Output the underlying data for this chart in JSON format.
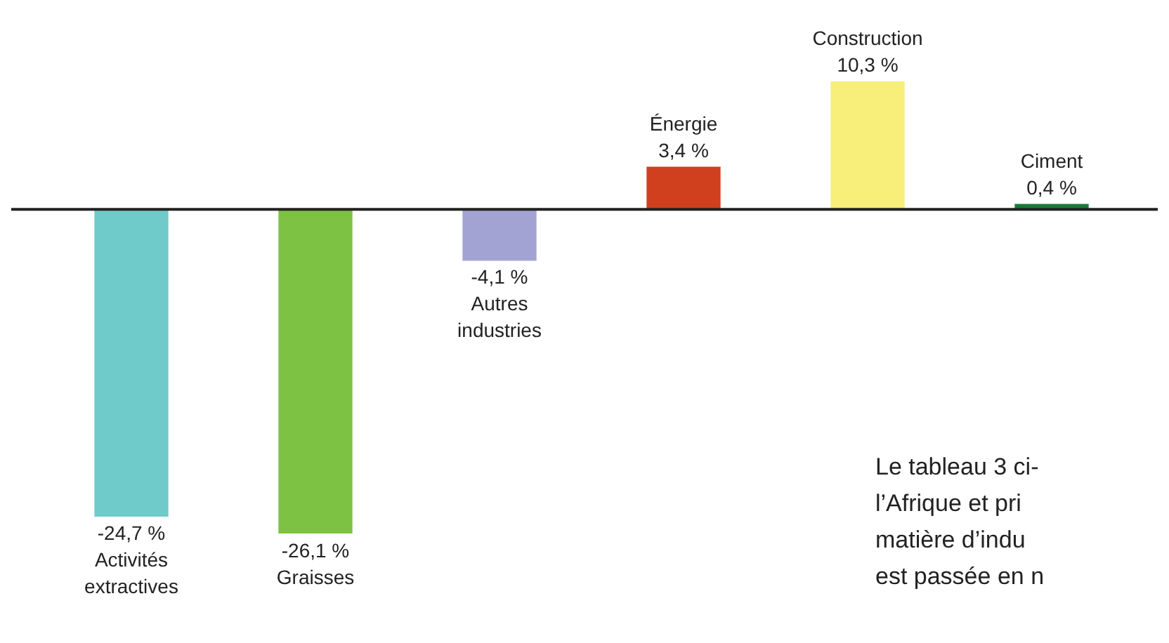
{
  "chart_data": {
    "type": "bar",
    "categories": [
      "Activités extractives",
      "Graisses",
      "Autres industries",
      "Énergie",
      "Construction",
      "Ciment"
    ],
    "values": [
      -24.7,
      -26.1,
      -4.1,
      3.4,
      10.3,
      0.4
    ],
    "colors": [
      "#6fcbc9",
      "#7dc242",
      "#a3a3d3",
      "#d0401e",
      "#f8ee7a",
      "#1a7a3a"
    ],
    "value_labels": [
      "-24,7 %",
      "-26,1 %",
      "-4,1 %",
      "3,4 %",
      "10,3 %",
      "0,4 %"
    ],
    "legend": false,
    "annotations": [
      "Le tableau 3 ci-",
      "l’Afrique et pri",
      "matière d’indu",
      "est passée en n"
    ]
  }
}
